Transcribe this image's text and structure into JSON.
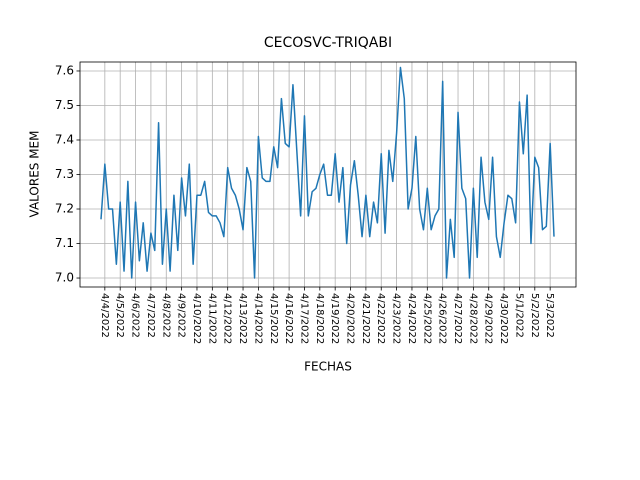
{
  "chart_data": {
    "type": "line",
    "title": "CECOSVC-TRIQABI",
    "x_label": "FECHAS",
    "y_label": "VALORES MEM",
    "color": "#1f77b4",
    "grid": true,
    "categories": [
      null,
      "4/4/2022",
      null,
      null,
      null,
      "4/5/2022",
      null,
      null,
      null,
      "4/6/2022",
      null,
      null,
      null,
      "4/7/2022",
      null,
      null,
      null,
      "4/8/2022",
      null,
      null,
      null,
      "4/9/2022",
      null,
      null,
      null,
      "4/10/2022",
      null,
      null,
      null,
      "4/11/2022",
      null,
      null,
      null,
      "4/12/2022",
      null,
      null,
      null,
      "4/13/2022",
      null,
      null,
      null,
      "4/14/2022",
      null,
      null,
      null,
      "4/15/2022",
      null,
      null,
      null,
      "4/16/2022",
      null,
      null,
      null,
      "4/17/2022",
      null,
      null,
      null,
      "4/18/2022",
      null,
      null,
      null,
      "4/19/2022",
      null,
      null,
      null,
      "4/20/2022",
      null,
      null,
      null,
      "4/21/2022",
      null,
      null,
      null,
      "4/22/2022",
      null,
      null,
      null,
      "4/23/2022",
      null,
      null,
      null,
      "4/24/2022",
      null,
      null,
      null,
      "4/25/2022",
      null,
      null,
      null,
      "4/26/2022",
      null,
      null,
      null,
      "4/27/2022",
      null,
      null,
      null,
      "4/28/2022",
      null,
      null,
      null,
      "4/29/2022",
      null,
      null,
      null,
      "4/30/2022",
      null,
      null,
      null,
      "5/1/2022",
      null,
      null,
      null,
      "5/2/2022",
      null,
      null,
      null,
      "5/3/2022",
      null
    ],
    "values": [
      7.17,
      7.33,
      7.2,
      7.2,
      7.04,
      7.22,
      7.02,
      7.28,
      7.0,
      7.22,
      7.05,
      7.16,
      7.02,
      7.13,
      7.08,
      7.45,
      7.04,
      7.2,
      7.02,
      7.24,
      7.08,
      7.29,
      7.18,
      7.33,
      7.04,
      7.24,
      7.24,
      7.28,
      7.19,
      7.18,
      7.18,
      7.16,
      7.12,
      7.32,
      7.26,
      7.24,
      7.2,
      7.14,
      7.32,
      7.28,
      7.0,
      7.41,
      7.29,
      7.28,
      7.28,
      7.38,
      7.32,
      7.52,
      7.39,
      7.38,
      7.56,
      7.37,
      7.18,
      7.47,
      7.18,
      7.25,
      7.26,
      7.3,
      7.33,
      7.24,
      7.24,
      7.36,
      7.22,
      7.32,
      7.1,
      7.27,
      7.34,
      7.24,
      7.12,
      7.24,
      7.12,
      7.22,
      7.16,
      7.36,
      7.13,
      7.37,
      7.28,
      7.42,
      7.61,
      7.52,
      7.2,
      7.26,
      7.41,
      7.2,
      7.14,
      7.26,
      7.14,
      7.18,
      7.2,
      7.57,
      7.0,
      7.17,
      7.06,
      7.48,
      7.26,
      7.23,
      7.0,
      7.26,
      7.06,
      7.35,
      7.22,
      7.17,
      7.35,
      7.12,
      7.06,
      7.16,
      7.24,
      7.23,
      7.16,
      7.51,
      7.36,
      7.53,
      7.1,
      7.35,
      7.32,
      7.14,
      7.15,
      7.39,
      7.12
    ],
    "ylim": [
      6.974,
      7.626
    ],
    "yticks": [
      {
        "value": 7,
        "label": "7.0"
      },
      7.1,
      7.2,
      7.3,
      7.4,
      7.5,
      7.6
    ]
  }
}
